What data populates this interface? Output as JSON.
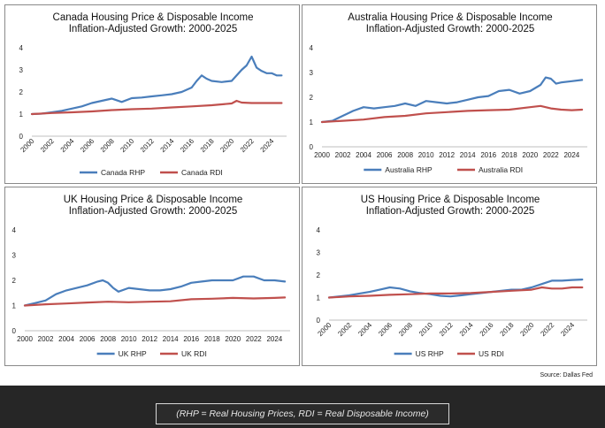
{
  "caption": "(RHP = Real Housing Prices, RDI = Real Disposable Income)",
  "source": "Source: Dallas Fed",
  "chart_data": [
    {
      "type": "line",
      "title": "Canada Housing Price & Disposable Income",
      "subtitle": "Inflation-Adjusted Growth: 2000-2025",
      "ylim": [
        0,
        4
      ],
      "yticks": [
        0,
        1,
        2,
        3,
        4
      ],
      "xlim": [
        2000,
        2025.5
      ],
      "xticks": [
        2000,
        2002,
        2004,
        2006,
        2008,
        2010,
        2012,
        2014,
        2016,
        2018,
        2020,
        2022,
        2024
      ],
      "x_tick_labels_rotated": true,
      "legend_position": "bottom",
      "grid": false,
      "series": [
        {
          "name": "Canada RHP",
          "color": "#4a7ebb",
          "x": [
            2000,
            2001,
            2002,
            2003,
            2004,
            2005,
            2006,
            2007,
            2008,
            2009,
            2010,
            2011,
            2012,
            2013,
            2014,
            2015,
            2016,
            2016.5,
            2017,
            2017.5,
            2018,
            2019,
            2020,
            2021,
            2021.5,
            2022,
            2022.5,
            2023,
            2023.5,
            2024,
            2024.5,
            2025
          ],
          "values": [
            1.0,
            1.02,
            1.08,
            1.15,
            1.25,
            1.35,
            1.5,
            1.6,
            1.7,
            1.55,
            1.72,
            1.75,
            1.8,
            1.85,
            1.9,
            2.0,
            2.2,
            2.5,
            2.75,
            2.6,
            2.5,
            2.45,
            2.5,
            3.0,
            3.2,
            3.6,
            3.1,
            2.95,
            2.85,
            2.85,
            2.75,
            2.75
          ]
        },
        {
          "name": "Canada RDI",
          "color": "#c0504d",
          "x": [
            2000,
            2002,
            2004,
            2006,
            2008,
            2010,
            2012,
            2014,
            2016,
            2018,
            2020,
            2020.5,
            2021,
            2022,
            2023,
            2024,
            2025
          ],
          "values": [
            1.0,
            1.05,
            1.08,
            1.12,
            1.18,
            1.22,
            1.25,
            1.3,
            1.35,
            1.4,
            1.48,
            1.6,
            1.52,
            1.5,
            1.5,
            1.5,
            1.5
          ]
        }
      ]
    },
    {
      "type": "line",
      "title": "Australia Housing Price & Disposable Income",
      "subtitle": "Inflation-Adjusted Growth: 2000-2025",
      "ylim": [
        0,
        4
      ],
      "yticks": [
        0,
        1,
        2,
        3,
        4
      ],
      "xlim": [
        2000,
        2025.5
      ],
      "xticks": [
        2000,
        2002,
        2004,
        2006,
        2008,
        2010,
        2012,
        2014,
        2016,
        2018,
        2020,
        2022,
        2024
      ],
      "x_tick_labels_rotated": false,
      "legend_position": "bottom",
      "grid": false,
      "series": [
        {
          "name": "Australia RHP",
          "color": "#4a7ebb",
          "x": [
            2000,
            2001,
            2002,
            2003,
            2004,
            2005,
            2006,
            2007,
            2008,
            2009,
            2010,
            2011,
            2012,
            2013,
            2014,
            2015,
            2016,
            2017,
            2018,
            2019,
            2020,
            2021,
            2021.5,
            2022,
            2022.5,
            2023,
            2024,
            2025
          ],
          "values": [
            1.0,
            1.05,
            1.25,
            1.45,
            1.6,
            1.55,
            1.6,
            1.65,
            1.75,
            1.65,
            1.85,
            1.8,
            1.75,
            1.8,
            1.9,
            2.0,
            2.05,
            2.25,
            2.3,
            2.15,
            2.25,
            2.5,
            2.8,
            2.75,
            2.55,
            2.6,
            2.65,
            2.7
          ]
        },
        {
          "name": "Australia RDI",
          "color": "#c0504d",
          "x": [
            2000,
            2002,
            2004,
            2006,
            2008,
            2010,
            2012,
            2014,
            2016,
            2018,
            2020,
            2021,
            2022,
            2023,
            2024,
            2025
          ],
          "values": [
            1.0,
            1.05,
            1.1,
            1.2,
            1.25,
            1.35,
            1.4,
            1.45,
            1.48,
            1.5,
            1.6,
            1.65,
            1.55,
            1.5,
            1.48,
            1.5
          ]
        }
      ]
    },
    {
      "type": "line",
      "title": "UK Housing Price & Disposable Income",
      "subtitle": "Inflation-Adjusted Growth: 2000-2025",
      "ylim": [
        0,
        4
      ],
      "yticks": [
        0,
        1,
        2,
        3,
        4
      ],
      "xlim": [
        2000,
        2025.5
      ],
      "xticks": [
        2000,
        2002,
        2004,
        2006,
        2008,
        2010,
        2012,
        2014,
        2016,
        2018,
        2020,
        2022,
        2024
      ],
      "x_tick_labels_rotated": false,
      "legend_position": "bottom",
      "grid": false,
      "series": [
        {
          "name": "UK RHP",
          "color": "#4a7ebb",
          "x": [
            2000,
            2001,
            2002,
            2003,
            2004,
            2005,
            2006,
            2007,
            2007.5,
            2008,
            2008.5,
            2009,
            2010,
            2011,
            2012,
            2013,
            2014,
            2015,
            2016,
            2017,
            2018,
            2019,
            2020,
            2021,
            2022,
            2023,
            2024,
            2025
          ],
          "values": [
            1.0,
            1.1,
            1.2,
            1.45,
            1.6,
            1.7,
            1.8,
            1.95,
            2.0,
            1.9,
            1.7,
            1.55,
            1.7,
            1.65,
            1.6,
            1.6,
            1.65,
            1.75,
            1.9,
            1.95,
            2.0,
            2.0,
            2.0,
            2.15,
            2.15,
            2.0,
            2.0,
            1.95
          ]
        },
        {
          "name": "UK RDI",
          "color": "#c0504d",
          "x": [
            2000,
            2002,
            2004,
            2006,
            2008,
            2010,
            2012,
            2014,
            2016,
            2018,
            2020,
            2022,
            2024,
            2025
          ],
          "values": [
            1.0,
            1.05,
            1.08,
            1.12,
            1.15,
            1.13,
            1.15,
            1.17,
            1.25,
            1.27,
            1.3,
            1.28,
            1.3,
            1.32
          ]
        }
      ]
    },
    {
      "type": "line",
      "title": "US Housing Price & Disposable Income",
      "subtitle": "Inflation-Adjusted Growth: 2000-2025",
      "ylim": [
        0,
        4
      ],
      "yticks": [
        0,
        1,
        2,
        3,
        4
      ],
      "xlim": [
        2000,
        2025.5
      ],
      "xticks": [
        2000,
        2002,
        2004,
        2006,
        2008,
        2010,
        2012,
        2014,
        2016,
        2018,
        2020,
        2022,
        2024
      ],
      "x_tick_labels_rotated": true,
      "legend_position": "bottom",
      "grid": false,
      "series": [
        {
          "name": "US RHP",
          "color": "#4a7ebb",
          "x": [
            2000,
            2001,
            2002,
            2003,
            2004,
            2005,
            2006,
            2007,
            2008,
            2009,
            2010,
            2011,
            2012,
            2013,
            2014,
            2015,
            2016,
            2017,
            2018,
            2019,
            2020,
            2021,
            2022,
            2023,
            2024,
            2025
          ],
          "values": [
            1.0,
            1.05,
            1.1,
            1.18,
            1.25,
            1.35,
            1.45,
            1.4,
            1.28,
            1.2,
            1.15,
            1.08,
            1.05,
            1.1,
            1.15,
            1.2,
            1.25,
            1.3,
            1.35,
            1.35,
            1.45,
            1.6,
            1.75,
            1.75,
            1.78,
            1.8
          ]
        },
        {
          "name": "US RDI",
          "color": "#c0504d",
          "x": [
            2000,
            2002,
            2004,
            2006,
            2008,
            2010,
            2012,
            2014,
            2016,
            2018,
            2020,
            2021,
            2022,
            2023,
            2024,
            2025
          ],
          "values": [
            1.0,
            1.05,
            1.08,
            1.12,
            1.15,
            1.18,
            1.18,
            1.2,
            1.25,
            1.3,
            1.35,
            1.45,
            1.4,
            1.4,
            1.45,
            1.45
          ]
        }
      ]
    }
  ]
}
